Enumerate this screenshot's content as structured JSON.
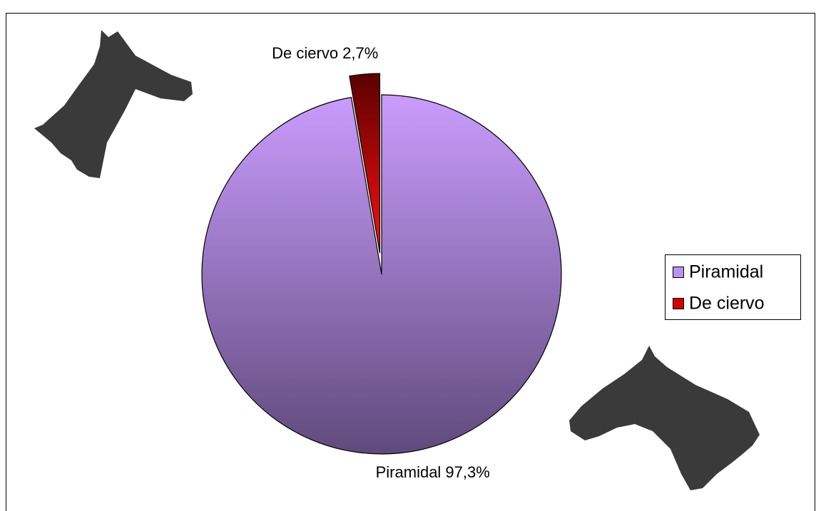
{
  "chart_data": {
    "type": "pie",
    "categories": [
      "Piramidal",
      "De ciervo"
    ],
    "values": [
      97.3,
      2.7
    ],
    "value_labels": [
      "Piramidal 97,3%",
      "De ciervo 2,7%"
    ],
    "colors": [
      "#b994ee",
      "#d40000"
    ],
    "legend": "right"
  }
}
